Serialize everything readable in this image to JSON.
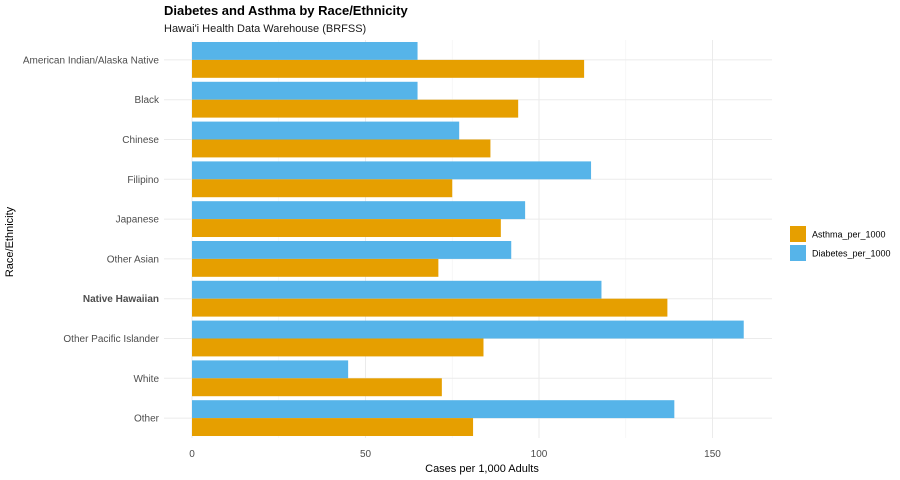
{
  "chart_data": {
    "type": "bar",
    "orientation": "horizontal",
    "title": "Diabetes and Asthma by Race/Ethnicity",
    "subtitle": "Hawai'i Health Data Warehouse (BRFSS)",
    "xlabel": "Cases per 1,000 Adults",
    "ylabel": "Race/Ethnicity",
    "xlim": [
      0,
      167
    ],
    "x_ticks": [
      0,
      50,
      100,
      150
    ],
    "grid": true,
    "legend_position": "right",
    "categories": [
      "American Indian/Alaska Native",
      "Black",
      "Chinese",
      "Filipino",
      "Japanese",
      "Other Asian",
      "Native Hawaiian",
      "Other Pacific Islander",
      "White",
      "Other"
    ],
    "highlighted_category": "Native Hawaiian",
    "series": [
      {
        "name": "Asthma_per_1000",
        "color": "#E69F00",
        "values": [
          113,
          94,
          86,
          75,
          89,
          71,
          137,
          84,
          72,
          81
        ]
      },
      {
        "name": "Diabetes_per_1000",
        "color": "#56B4E9",
        "values": [
          65,
          65,
          77,
          115,
          96,
          92,
          118,
          159,
          45,
          139
        ]
      }
    ]
  }
}
